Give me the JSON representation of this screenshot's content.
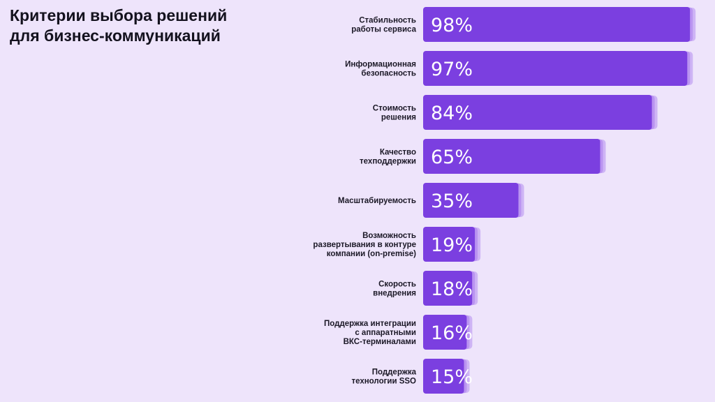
{
  "title": {
    "line1": "Критерии выбора решений",
    "line2": "для бизнес-коммуникаций"
  },
  "colors": {
    "background": "#eee4fb",
    "bar": "#7b3fe0",
    "bar_shadow": "#b58cf0",
    "label_text": "#1b1826",
    "value_text": "#ffffff"
  },
  "chart_data": {
    "type": "bar",
    "orientation": "horizontal",
    "title": "Критерии выбора решений для бизнес-коммуникаций",
    "xlim": [
      0,
      100
    ],
    "categories": [
      [
        "Стабильность",
        "работы сервиса"
      ],
      [
        "Информационная",
        "безопасность"
      ],
      [
        "Стоимость",
        "решения"
      ],
      [
        "Качество",
        "техподдержки"
      ],
      [
        "Масштабируемость"
      ],
      [
        "Возможность",
        "развертывания в контуре",
        "компании (on-premise)"
      ],
      [
        "Скорость",
        "внедрения"
      ],
      [
        "Поддержка интеграции",
        "с аппаратными",
        "ВКС-терминалами"
      ],
      [
        "Поддержка",
        "технологии SSO"
      ]
    ],
    "values": [
      98,
      97,
      84,
      65,
      35,
      19,
      18,
      16,
      15
    ],
    "value_labels": [
      "98%",
      "97%",
      "84%",
      "65%",
      "35%",
      "19%",
      "18%",
      "16%",
      "15%"
    ],
    "legend": "none",
    "grid": false
  }
}
